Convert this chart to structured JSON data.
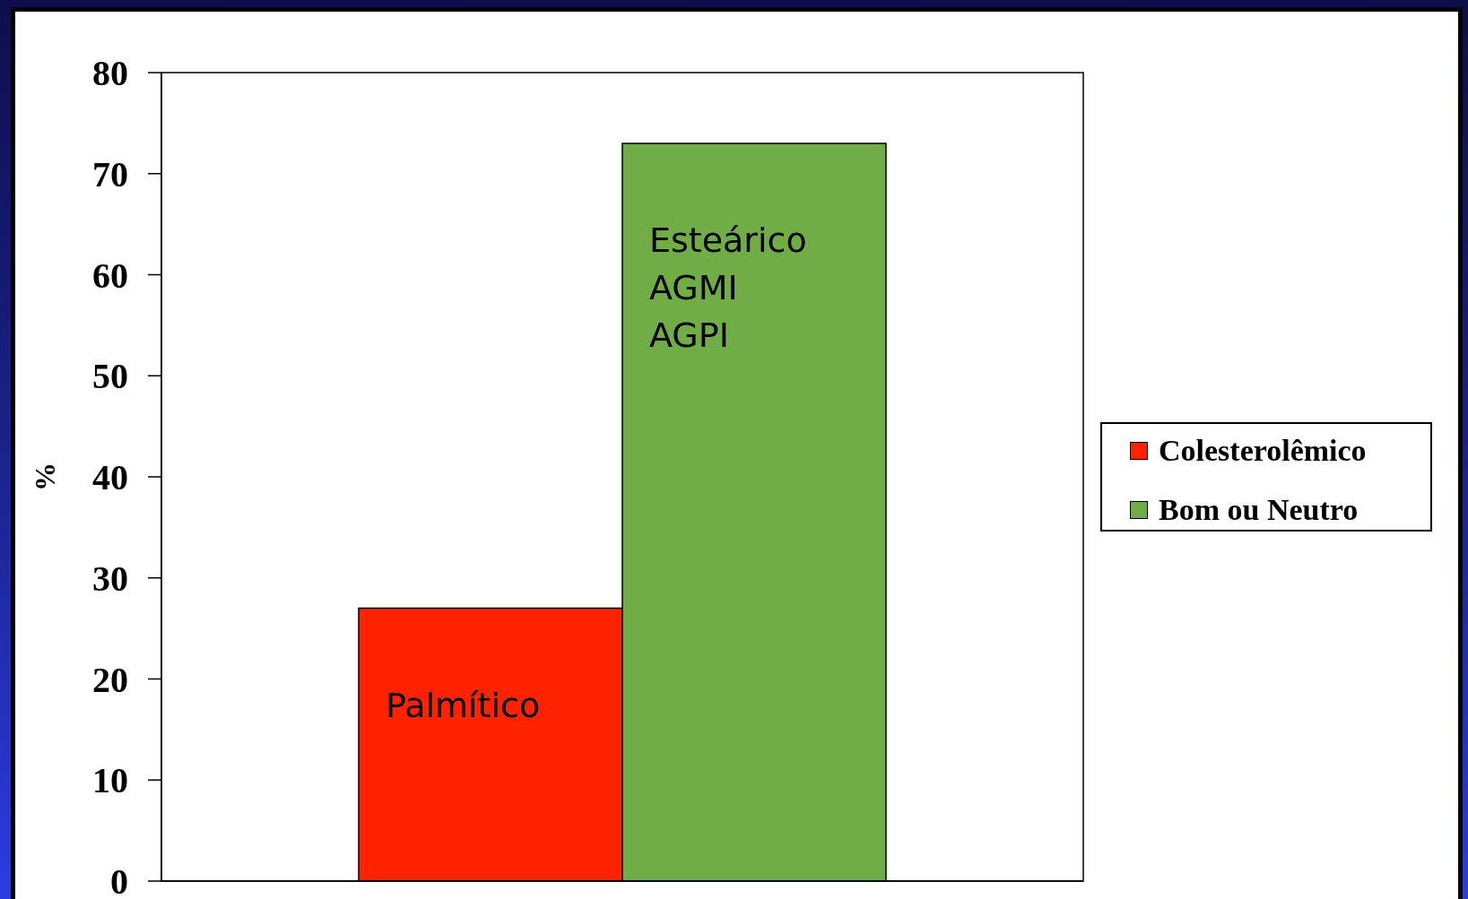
{
  "chart_data": {
    "type": "bar",
    "ylabel": "%",
    "categories": [
      null
    ],
    "series": [
      {
        "name": "Colesterolêmico",
        "color": "#ff2200",
        "values": [
          27
        ]
      },
      {
        "name": "Bom ou Neutro",
        "color": "#70ad47",
        "values": [
          73
        ]
      }
    ],
    "ylim": [
      0,
      80
    ],
    "yticks": [
      0,
      10,
      20,
      30,
      40,
      50,
      60,
      70,
      80
    ],
    "legend": "right",
    "annotations": [
      "Palmítico",
      "Esteárico\nAGMI\nAGPI"
    ]
  }
}
